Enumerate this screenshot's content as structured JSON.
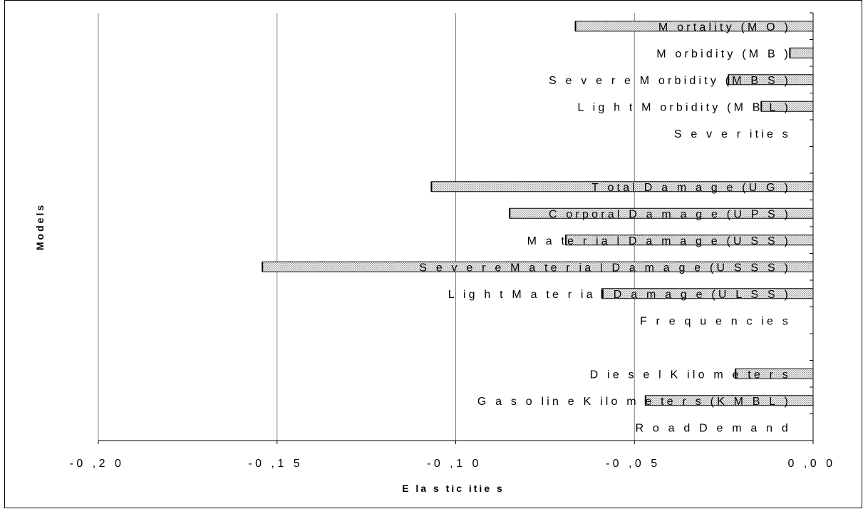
{
  "chart_data": {
    "type": "bar",
    "orientation": "horizontal",
    "title": "",
    "xlabel": "E la s tic itie s",
    "ylabel": "Models",
    "xlim": [
      -0.2,
      0.0
    ],
    "xticks": [
      -0.2,
      -0.15,
      -0.1,
      -0.05,
      0.0
    ],
    "xtick_labels": [
      "-0 ,2 0",
      "-0 ,1 5",
      "-0 ,1 0",
      "-0 ,0 5",
      "0 ,0 0"
    ],
    "grid": "vertical",
    "legend": "none",
    "bar_color": "#cfcfcf",
    "categories": [
      "M ortality (M O )",
      "M orbidity (M B )",
      "S e v e r e M orbidity (M B S )",
      "L ig h t M orbidity (M B L )",
      "S e v e r itie s",
      "",
      "T otal D a m a g e (U G )",
      "C orporal D a m a g e (U P S )",
      "M a te r ia l D a m a g e (U S S )",
      "S e v e r e M a te r ia l D a m a g e (U S S S )",
      "L ig h t M a te r ia l D a m a g e (U L S S )",
      "F r e q u e n c ie s",
      "",
      "D ie s e l K ilo m e te r s",
      "G a s o lin e K ilo m e te r s (K M B L )",
      "R o a d D e m a n d"
    ],
    "values": [
      -0.0665,
      -0.0065,
      -0.0237,
      -0.0145,
      null,
      null,
      -0.1068,
      -0.0849,
      -0.0692,
      -0.1541,
      -0.0591,
      null,
      null,
      -0.0217,
      -0.0469,
      null
    ]
  }
}
